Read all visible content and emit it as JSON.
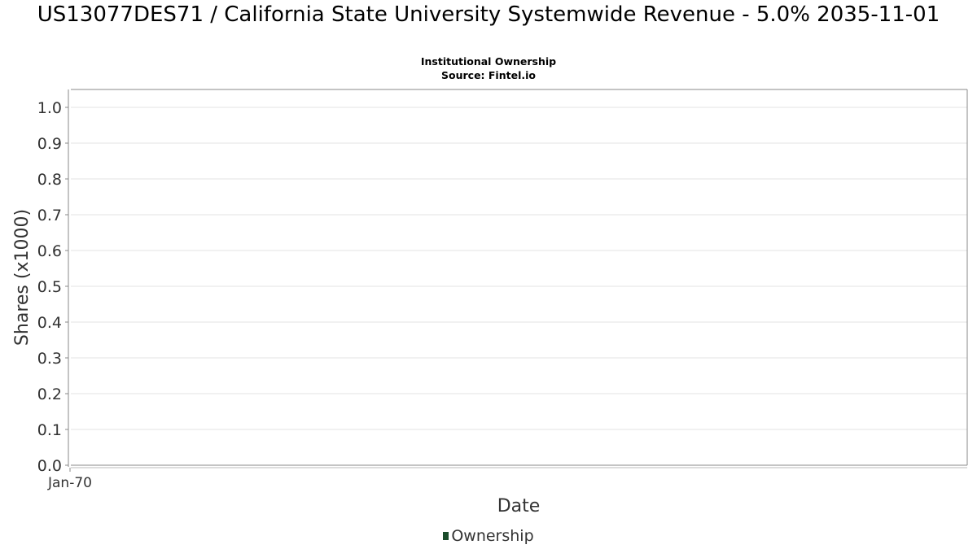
{
  "header": {
    "title": "US13077DES71 / California State University Systemwide Revenue - 5.0% 2035-11-01",
    "subtitle": "Institutional Ownership",
    "source": "Source: Fintel.io"
  },
  "colors": {
    "series": "#1b4d2b",
    "grid": "#e3e3e3",
    "frame": "#888888",
    "tick_text": "#333333"
  },
  "chart_data": {
    "type": "line",
    "title": "US13077DES71 / California State University Systemwide Revenue - 5.0% 2035-11-01",
    "subtitle": "Institutional Ownership",
    "xlabel": "Date",
    "ylabel": "Shares (x1000)",
    "ylim": [
      0,
      1.0
    ],
    "y_ticks": [
      "0.0",
      "0.1",
      "0.2",
      "0.3",
      "0.4",
      "0.5",
      "0.6",
      "0.7",
      "0.8",
      "0.9",
      "1.0"
    ],
    "x_ticks": [
      "Jan-70"
    ],
    "grid": true,
    "legend_position": "bottom",
    "series": [
      {
        "name": "Ownership",
        "x": [],
        "values": []
      }
    ]
  }
}
